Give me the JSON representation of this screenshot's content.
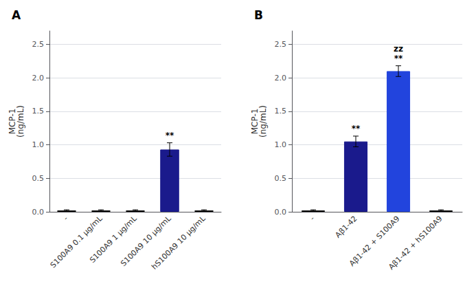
{
  "chart_data": [
    {
      "type": "bar",
      "title": "A",
      "categories": [
        "-",
        "S100A9 0.1 μg/mL",
        "S100A9 1 μg/mL",
        "S100A9 10 μg/mL",
        "hS100A9 10 μg/mL"
      ],
      "values": [
        0.02,
        0.02,
        0.02,
        0.93,
        0.02
      ],
      "errors": [
        0.01,
        0.01,
        0.01,
        0.1,
        0.01
      ],
      "colors": [
        "#ffffff",
        "#ffffff",
        "#ffffff",
        "#1a1a8c",
        "#ffffff"
      ],
      "annotations": [
        {
          "category": "S100A9 10 μg/mL",
          "text": "**"
        }
      ],
      "ylabel": "MCP-1\n(ng/mL)",
      "ylim": [
        0,
        2.7
      ],
      "yticks": [
        {
          "value": 0.0,
          "label": "0.0"
        },
        0.5,
        {
          "value": 1.0,
          "label": "1.0"
        },
        1.5,
        {
          "value": 2.0,
          "label": "2.0"
        },
        2.5
      ]
    },
    {
      "type": "bar",
      "title": "B",
      "categories": [
        "-",
        "Aβ1-42",
        "Aβ1-42 + S100A9",
        "Aβ1-42 + hS100A9"
      ],
      "values": [
        0.02,
        1.05,
        2.1,
        0.02
      ],
      "errors": [
        0.01,
        0.08,
        0.08,
        0.01
      ],
      "colors": [
        "#ffffff",
        "#1a1a8c",
        "#2244dd",
        "#ffffff"
      ],
      "annotations": [
        {
          "category": "Aβ1-42",
          "text": "**"
        },
        {
          "category": "Aβ1-42 + S100A9",
          "text": "zz\n**"
        }
      ],
      "ylabel": "MCP-1\n(ng/mL)",
      "ylim": [
        0,
        2.7
      ],
      "yticks": [
        {
          "value": 0.0,
          "label": "0.0"
        },
        0.5,
        {
          "value": 1.0,
          "label": "1.0"
        },
        1.5,
        {
          "value": 2.0,
          "label": "2.0"
        },
        2.5
      ]
    }
  ]
}
